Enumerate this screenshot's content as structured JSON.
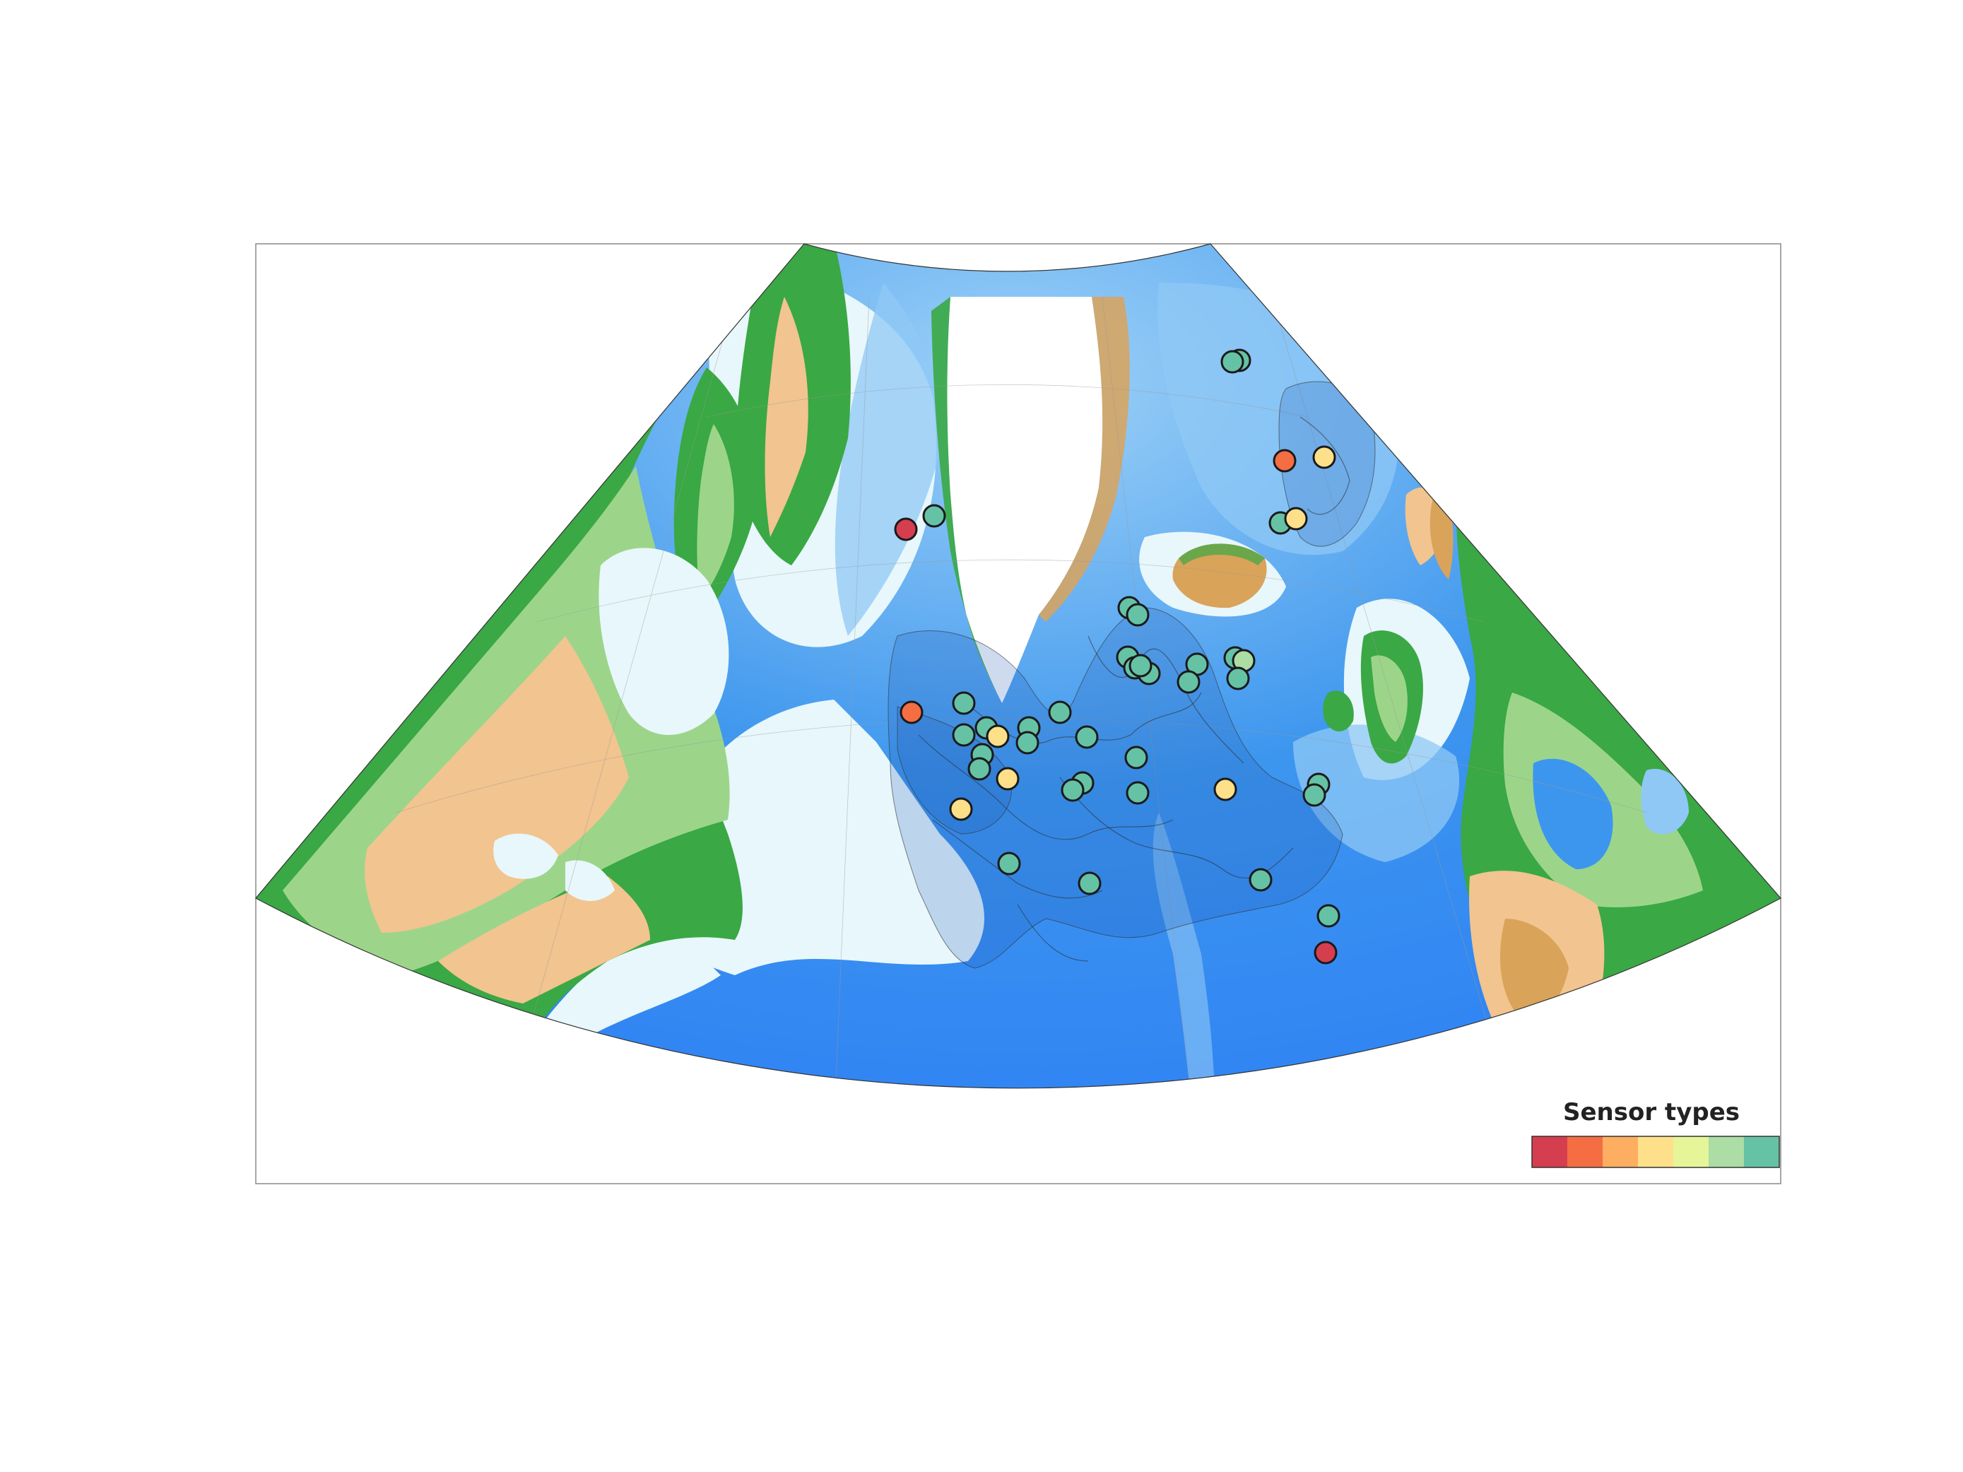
{
  "legend": {
    "title": "Sensor types",
    "swatches": [
      "#d53e4f",
      "#f46d43",
      "#fdae61",
      "#fee08b",
      "#e6f598",
      "#abdda4",
      "#66c2a5"
    ]
  },
  "colors": {
    "ocean_deep": "#2a7bf6",
    "ocean_mid": "#3d96ee",
    "ocean_shelf": "#8fc8f5",
    "ocean_shallow": "#e8f7fb",
    "ice": "#ffffff",
    "land_low": "#3aa844",
    "land_mid": "#9cd58a",
    "land_high": "#f2c48f",
    "land_mountain": "#d9a35a",
    "frame": "#888888"
  },
  "markers": [
    {
      "sensor_index": 0,
      "color": "#d53e4f"
    },
    {
      "sensor_index": 6,
      "color": "#66c2a5"
    },
    {
      "sensor_index": 1,
      "color": "#f46d43"
    },
    {
      "sensor_index": 6,
      "color": "#66c2a5"
    },
    {
      "sensor_index": 3,
      "color": "#fee08b"
    },
    {
      "sensor_index": 1,
      "color": "#f46d43"
    },
    {
      "sensor_index": 3,
      "color": "#fee08b"
    },
    {
      "sensor_index": 6,
      "color": "#66c2a5"
    },
    {
      "sensor_index": 6,
      "color": "#66c2a5"
    },
    {
      "sensor_index": 6,
      "color": "#66c2a5"
    },
    {
      "sensor_index": 6,
      "color": "#66c2a5"
    },
    {
      "sensor_index": 6,
      "color": "#66c2a5"
    },
    {
      "sensor_index": 6,
      "color": "#66c2a5"
    },
    {
      "sensor_index": 6,
      "color": "#66c2a5"
    },
    {
      "sensor_index": 6,
      "color": "#66c2a5"
    },
    {
      "sensor_index": 6,
      "color": "#66c2a5"
    },
    {
      "sensor_index": 6,
      "color": "#66c2a5"
    },
    {
      "sensor_index": 6,
      "color": "#66c2a5"
    },
    {
      "sensor_index": 5,
      "color": "#abdda4"
    },
    {
      "sensor_index": 6,
      "color": "#66c2a5"
    },
    {
      "sensor_index": 6,
      "color": "#66c2a5"
    },
    {
      "sensor_index": 6,
      "color": "#66c2a5"
    },
    {
      "sensor_index": 3,
      "color": "#fee08b"
    },
    {
      "sensor_index": 6,
      "color": "#66c2a5"
    },
    {
      "sensor_index": 6,
      "color": "#66c2a5"
    },
    {
      "sensor_index": 6,
      "color": "#66c2a5"
    },
    {
      "sensor_index": 6,
      "color": "#66c2a5"
    },
    {
      "sensor_index": 6,
      "color": "#66c2a5"
    },
    {
      "sensor_index": 6,
      "color": "#66c2a5"
    },
    {
      "sensor_index": 3,
      "color": "#fee08b"
    },
    {
      "sensor_index": 6,
      "color": "#66c2a5"
    },
    {
      "sensor_index": 6,
      "color": "#66c2a5"
    },
    {
      "sensor_index": 6,
      "color": "#66c2a5"
    },
    {
      "sensor_index": 6,
      "color": "#66c2a5"
    },
    {
      "sensor_index": 6,
      "color": "#66c2a5"
    },
    {
      "sensor_index": 3,
      "color": "#fee08b"
    },
    {
      "sensor_index": 6,
      "color": "#66c2a5"
    },
    {
      "sensor_index": 6,
      "color": "#66c2a5"
    },
    {
      "sensor_index": 3,
      "color": "#fee08b"
    },
    {
      "sensor_index": 6,
      "color": "#66c2a5"
    },
    {
      "sensor_index": 6,
      "color": "#66c2a5"
    },
    {
      "sensor_index": 6,
      "color": "#66c2a5"
    },
    {
      "sensor_index": 6,
      "color": "#66c2a5"
    }
  ]
}
